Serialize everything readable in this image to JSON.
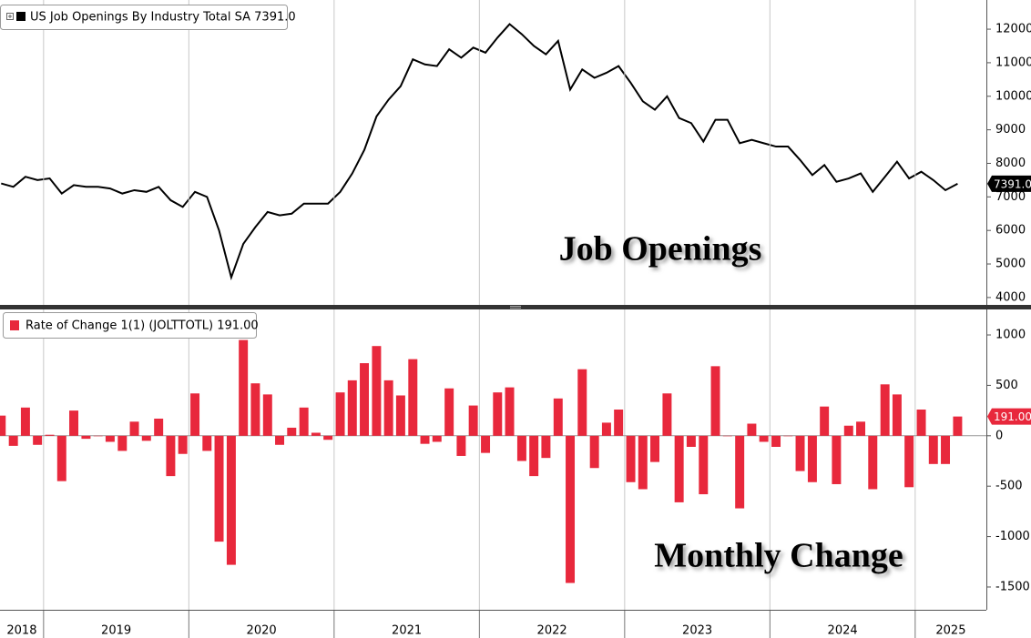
{
  "chart_data": [
    {
      "type": "line",
      "x": [
        2018.708,
        2018.792,
        2018.875,
        2018.958,
        2019.042,
        2019.125,
        2019.208,
        2019.292,
        2019.375,
        2019.458,
        2019.542,
        2019.625,
        2019.708,
        2019.792,
        2019.875,
        2019.958,
        2020.042,
        2020.125,
        2020.208,
        2020.292,
        2020.375,
        2020.458,
        2020.542,
        2020.625,
        2020.708,
        2020.792,
        2020.875,
        2020.958,
        2021.042,
        2021.125,
        2021.208,
        2021.292,
        2021.375,
        2021.458,
        2021.542,
        2021.625,
        2021.708,
        2021.792,
        2021.875,
        2021.958,
        2022.042,
        2022.125,
        2022.208,
        2022.292,
        2022.375,
        2022.458,
        2022.542,
        2022.625,
        2022.708,
        2022.792,
        2022.875,
        2022.958,
        2023.042,
        2023.125,
        2023.208,
        2023.292,
        2023.375,
        2023.458,
        2023.542,
        2023.625,
        2023.708,
        2023.792,
        2023.875,
        2023.958,
        2024.042,
        2024.125,
        2024.208,
        2024.292,
        2024.375,
        2024.458,
        2024.542,
        2024.625,
        2024.708,
        2024.792,
        2024.875,
        2024.958,
        2025.042,
        2025.125,
        2025.208,
        2025.292
      ],
      "series": [
        {
          "name": "US Job Openings By Industry Total SA 7391.0",
          "color": "#000000",
          "last_value_label": "7391.0",
          "values": [
            7400,
            7300,
            7600,
            7500,
            7550,
            7100,
            7350,
            7300,
            7300,
            7250,
            7100,
            7200,
            7150,
            7300,
            6900,
            6700,
            7150,
            7000,
            6000,
            4600,
            5600,
            6100,
            6550,
            6450,
            6500,
            6800,
            6800,
            6800,
            7150,
            7700,
            8400,
            9400,
            9900,
            10300,
            11100,
            10950,
            10900,
            11400,
            11150,
            11450,
            11300,
            11750,
            12150,
            11850,
            11500,
            11250,
            11650,
            10200,
            10800,
            10550,
            10700,
            10900,
            10400,
            9850,
            9600,
            10000,
            9350,
            9200,
            8650,
            9300,
            9300,
            8600,
            8700,
            8600,
            8500,
            8500,
            8100,
            7650,
            7950,
            7450,
            7550,
            7700,
            7150,
            7600,
            8050,
            7550,
            7750,
            7500,
            7200,
            7391
          ]
        }
      ],
      "xlim": [
        2018.7,
        2025.49
      ],
      "ylim": [
        3780,
        12870
      ],
      "yticks": [
        4000,
        5000,
        6000,
        7000,
        8000,
        9000,
        10000,
        11000,
        12000
      ],
      "annotation": "Job Openings"
    },
    {
      "type": "bar",
      "x": [
        2018.708,
        2018.792,
        2018.875,
        2018.958,
        2019.042,
        2019.125,
        2019.208,
        2019.292,
        2019.375,
        2019.458,
        2019.542,
        2019.625,
        2019.708,
        2019.792,
        2019.875,
        2019.958,
        2020.042,
        2020.125,
        2020.208,
        2020.292,
        2020.375,
        2020.458,
        2020.542,
        2020.625,
        2020.708,
        2020.792,
        2020.875,
        2020.958,
        2021.042,
        2021.125,
        2021.208,
        2021.292,
        2021.375,
        2021.458,
        2021.542,
        2021.625,
        2021.708,
        2021.792,
        2021.875,
        2021.958,
        2022.042,
        2022.125,
        2022.208,
        2022.292,
        2022.375,
        2022.458,
        2022.542,
        2022.625,
        2022.708,
        2022.792,
        2022.875,
        2022.958,
        2023.042,
        2023.125,
        2023.208,
        2023.292,
        2023.375,
        2023.458,
        2023.542,
        2023.625,
        2023.708,
        2023.792,
        2023.875,
        2023.958,
        2024.042,
        2024.125,
        2024.208,
        2024.292,
        2024.375,
        2024.458,
        2024.542,
        2024.625,
        2024.708,
        2024.792,
        2024.875,
        2024.958,
        2025.042,
        2025.125,
        2025.208,
        2025.292
      ],
      "series": [
        {
          "name": "Rate of Change 1(1) (JOLTTOTL) 191.00",
          "color": "#e8283c",
          "last_value_label": "191.00",
          "values": [
            200,
            -100,
            280,
            -90,
            10,
            -450,
            250,
            -30,
            0,
            -60,
            -150,
            140,
            -50,
            170,
            -400,
            -180,
            420,
            -150,
            -1050,
            -1280,
            950,
            520,
            410,
            -90,
            80,
            280,
            30,
            -40,
            430,
            550,
            720,
            890,
            550,
            400,
            760,
            -80,
            -60,
            470,
            -200,
            300,
            -170,
            430,
            480,
            -250,
            -400,
            -220,
            370,
            -1460,
            660,
            -320,
            130,
            260,
            -460,
            -530,
            -260,
            420,
            -660,
            -110,
            -580,
            690,
            0,
            -720,
            120,
            -60,
            -110,
            0,
            -350,
            -460,
            290,
            -480,
            100,
            140,
            -530,
            510,
            410,
            -510,
            260,
            -280,
            -280,
            191
          ]
        }
      ],
      "xlim": [
        2018.7,
        2025.49
      ],
      "xticks": [
        2018,
        2019,
        2020,
        2021,
        2022,
        2023,
        2024,
        2025
      ],
      "ylim": [
        -1726,
        1253
      ],
      "yticks": [
        -1500,
        -1000,
        -500,
        0,
        500,
        1000
      ],
      "annotation": "Monthly Change"
    }
  ]
}
